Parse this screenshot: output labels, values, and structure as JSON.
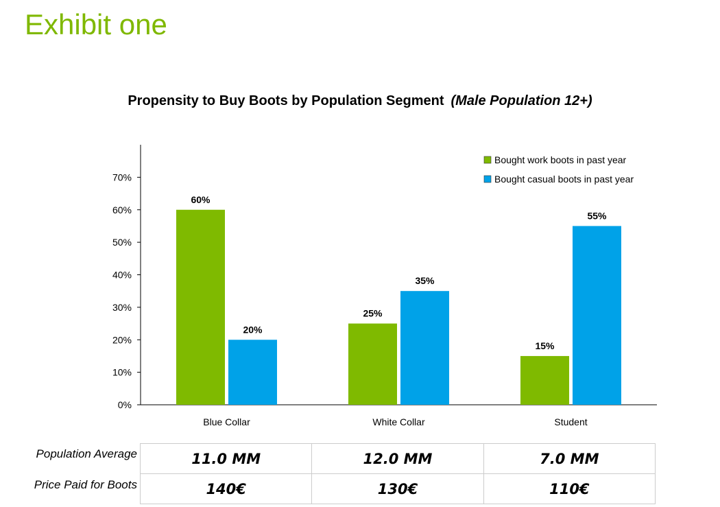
{
  "exhibit_title": "Exhibit one",
  "chart_title": "Propensity to Buy Boots by Population Segment",
  "chart_subtitle": "(Male Population 12+)",
  "colors": {
    "work": "#7fba00",
    "casual": "#00a2e8",
    "accent_title": "#7fb800"
  },
  "chart_data": {
    "type": "bar",
    "title": "Propensity to Buy Boots by Population Segment",
    "subtitle": "(Male Population 12+)",
    "categories": [
      "Blue Collar",
      "White Collar",
      "Student"
    ],
    "series": [
      {
        "name": "Bought work boots in past year",
        "values": [
          60,
          25,
          15
        ],
        "color": "#7fba00",
        "labels": [
          "60%",
          "25%",
          "15%"
        ]
      },
      {
        "name": "Bought casual boots in past year",
        "values": [
          20,
          35,
          55
        ],
        "color": "#00a2e8",
        "labels": [
          "20%",
          "35%",
          "55%"
        ]
      }
    ],
    "yticks": [
      "0%",
      "10%",
      "20%",
      "30%",
      "40%",
      "50%",
      "60%",
      "70%"
    ],
    "ylim": [
      0,
      80
    ],
    "xlabel": "",
    "ylabel": "",
    "grid": false,
    "legend": "top-right"
  },
  "table": {
    "rows": [
      {
        "label": "Population Average",
        "values": [
          "11.0 MM",
          "12.0 MM",
          "7.0 MM"
        ]
      },
      {
        "label": "Price Paid for Boots",
        "values": [
          "140€",
          "130€",
          "110€"
        ]
      }
    ]
  }
}
